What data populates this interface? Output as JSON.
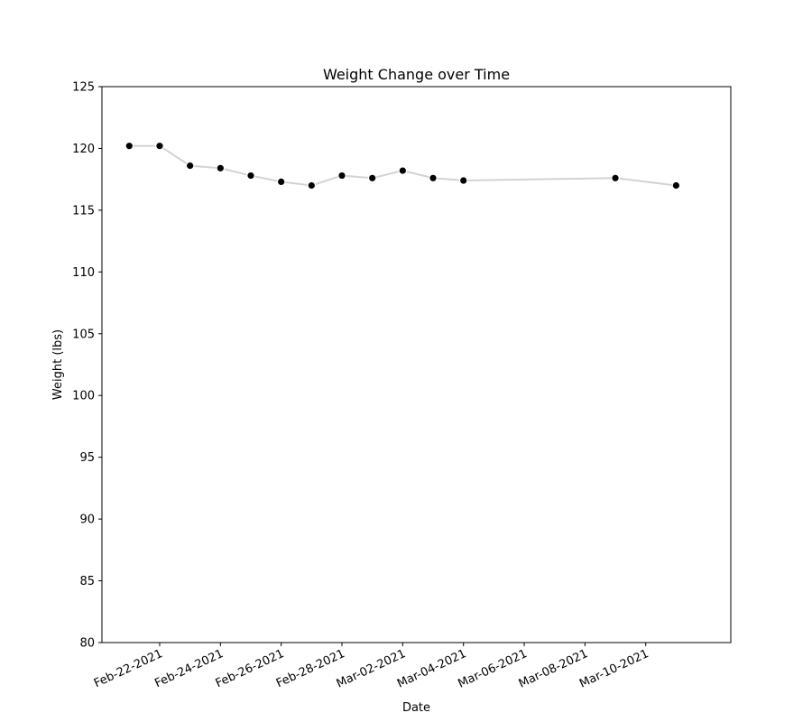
{
  "chart_data": {
    "type": "line",
    "title": "Weight Change over Time",
    "xlabel": "Date",
    "ylabel": "Weight (lbs)",
    "xlim": [
      "2021-02-20T02:24",
      "2021-03-12T19:12"
    ],
    "ylim": [
      80,
      125
    ],
    "x_ticks": [
      "2021-02-22",
      "2021-02-24",
      "2021-02-26",
      "2021-02-28",
      "2021-03-02",
      "2021-03-04",
      "2021-03-06",
      "2021-03-08",
      "2021-03-10"
    ],
    "x_tick_labels": [
      "Feb-22-2021",
      "Feb-24-2021",
      "Feb-26-2021",
      "Feb-28-2021",
      "Mar-02-2021",
      "Mar-04-2021",
      "Mar-06-2021",
      "Mar-08-2021",
      "Mar-10-2021"
    ],
    "y_ticks": [
      80,
      85,
      90,
      95,
      100,
      105,
      110,
      115,
      120,
      125
    ],
    "grid": false,
    "line_color": "#d3d3d3",
    "marker_color": "#000000",
    "marker_edge_color": "#ffffff",
    "series": [
      {
        "x": [
          "2021-02-21",
          "2021-02-22",
          "2021-02-23",
          "2021-02-24",
          "2021-02-25",
          "2021-02-26",
          "2021-02-27",
          "2021-02-28",
          "2021-03-01",
          "2021-03-02",
          "2021-03-03",
          "2021-03-04",
          "2021-03-09",
          "2021-03-11"
        ],
        "y": [
          120.2,
          120.2,
          118.6,
          118.4,
          117.8,
          117.3,
          117.0,
          117.8,
          117.6,
          118.2,
          117.6,
          117.4,
          117.6,
          117.0
        ]
      }
    ]
  }
}
